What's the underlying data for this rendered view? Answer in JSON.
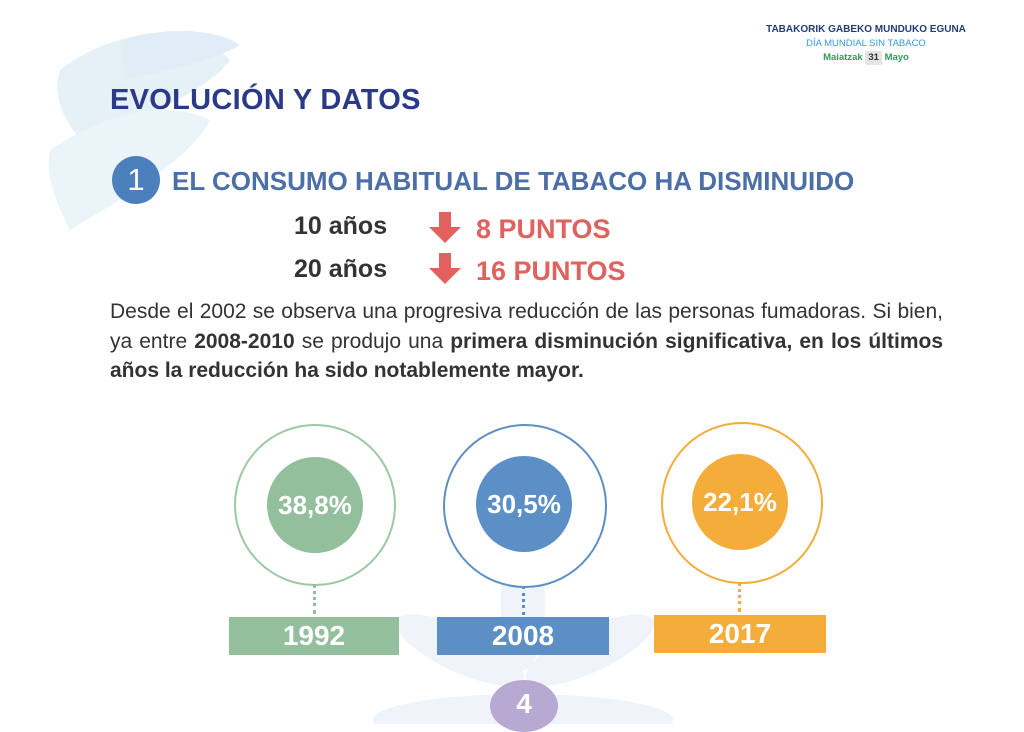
{
  "header": {
    "line1": "TABAKORIK GABEKO MUNDUKO EGUNA",
    "line2": "DÍA MUNDIAL SIN TABACO",
    "line3_prefix": "Maiatzak",
    "line3_number": "31",
    "line3_suffix": "Mayo"
  },
  "title": "EVOLUCIÓN Y DATOS",
  "section": {
    "number": "1",
    "subtitle": "EL CONSUMO HABITUAL DE TABACO HA DISMINUIDO"
  },
  "stats": [
    {
      "period": "10 años",
      "change": "8 PUNTOS",
      "arrow_icon": "arrow-down-icon"
    },
    {
      "period": "20 años",
      "change": "16 PUNTOS",
      "arrow_icon": "arrow-down-icon"
    }
  ],
  "paragraph": {
    "t1": "Desde el 2002 se observa una progresiva reducción de las personas fumadoras. Si bien, ya entre ",
    "b1": "2008-2010",
    "t2": " se produjo una ",
    "b2": "primera disminución significativa, en los últimos años la reducción ha sido notablemente mayor."
  },
  "timeline": [
    {
      "year": "1992",
      "value": "38,8%",
      "color": "#93bf9d"
    },
    {
      "year": "2008",
      "value": "30,5%",
      "color": "#5b8fc6"
    },
    {
      "year": "2017",
      "value": "22,1%",
      "color": "#f4ac3b"
    }
  ],
  "page_number": "4",
  "colors": {
    "title": "#2a3a86",
    "accent_red": "#e0615d",
    "badge": "#4b80bd"
  }
}
